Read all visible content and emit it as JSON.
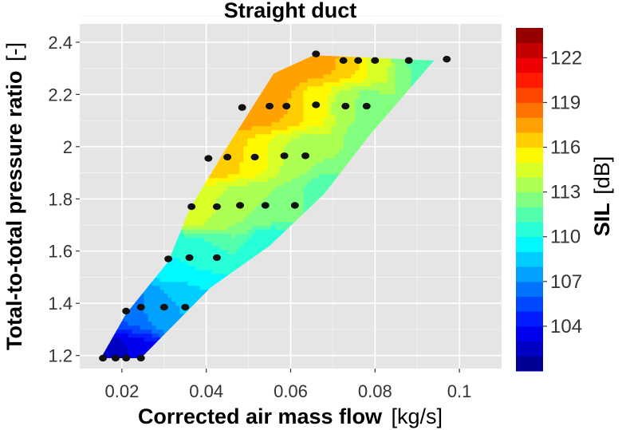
{
  "chart_data": {
    "type": "contour-scatter",
    "title": "Straight duct",
    "xlabel": {
      "main": "Corrected air mass flow",
      "unit": "[kg/s]"
    },
    "ylabel": {
      "main": "Total-to-total pressure ratio",
      "unit": "[-]"
    },
    "xlim": [
      0.01,
      0.11
    ],
    "ylim": [
      1.15,
      2.47
    ],
    "xticks": [
      0.02,
      0.04,
      0.06,
      0.08,
      0.1
    ],
    "xtick_labels": [
      "0.02",
      "0.04",
      "0.06",
      "0.08",
      "0.1"
    ],
    "yticks": [
      1.2,
      1.4,
      1.6,
      1.8,
      2.0,
      2.2,
      2.4
    ],
    "ytick_labels": [
      "1.2",
      "1.4",
      "1.6",
      "1.8",
      "2",
      "2.2",
      "2.4"
    ],
    "grid": true,
    "colorbar": {
      "label": {
        "main": "SIL",
        "unit": "[dB]"
      },
      "range": [
        101,
        124
      ],
      "ticks": [
        104,
        107,
        110,
        113,
        116,
        119,
        122
      ],
      "tick_labels": [
        "104",
        "107",
        "110",
        "113",
        "116",
        "119",
        "122"
      ]
    },
    "domain_boundary": [
      [
        0.015,
        1.19
      ],
      [
        0.0245,
        1.19
      ],
      [
        0.041,
        1.46
      ],
      [
        0.055,
        1.62
      ],
      [
        0.068,
        1.82
      ],
      [
        0.079,
        2.05
      ],
      [
        0.094,
        2.33
      ],
      [
        0.0655,
        2.35
      ],
      [
        0.056,
        2.28
      ],
      [
        0.045,
        2.0
      ],
      [
        0.036,
        1.76
      ],
      [
        0.031,
        1.56
      ],
      [
        0.021,
        1.36
      ]
    ],
    "sil_contour_points": [
      {
        "x": 0.0155,
        "y": 1.19,
        "sil": 102
      },
      {
        "x": 0.0185,
        "y": 1.19,
        "sil": 102.5
      },
      {
        "x": 0.021,
        "y": 1.19,
        "sil": 103
      },
      {
        "x": 0.0245,
        "y": 1.19,
        "sil": 103.5
      },
      {
        "x": 0.021,
        "y": 1.37,
        "sil": 106
      },
      {
        "x": 0.0245,
        "y": 1.385,
        "sil": 107
      },
      {
        "x": 0.03,
        "y": 1.385,
        "sil": 108
      },
      {
        "x": 0.035,
        "y": 1.385,
        "sil": 108
      },
      {
        "x": 0.031,
        "y": 1.57,
        "sil": 110
      },
      {
        "x": 0.036,
        "y": 1.575,
        "sil": 110
      },
      {
        "x": 0.0425,
        "y": 1.575,
        "sil": 111
      },
      {
        "x": 0.0365,
        "y": 1.77,
        "sil": 115
      },
      {
        "x": 0.0425,
        "y": 1.77,
        "sil": 114
      },
      {
        "x": 0.048,
        "y": 1.775,
        "sil": 113
      },
      {
        "x": 0.054,
        "y": 1.775,
        "sil": 113
      },
      {
        "x": 0.061,
        "y": 1.775,
        "sil": 112
      },
      {
        "x": 0.0405,
        "y": 1.955,
        "sil": 117
      },
      {
        "x": 0.045,
        "y": 1.96,
        "sil": 116.5
      },
      {
        "x": 0.0515,
        "y": 1.96,
        "sil": 115.5
      },
      {
        "x": 0.0585,
        "y": 1.965,
        "sil": 114
      },
      {
        "x": 0.0635,
        "y": 1.965,
        "sil": 113
      },
      {
        "x": 0.0485,
        "y": 2.15,
        "sil": 118
      },
      {
        "x": 0.055,
        "y": 2.155,
        "sil": 117.5
      },
      {
        "x": 0.059,
        "y": 2.155,
        "sil": 117
      },
      {
        "x": 0.066,
        "y": 2.16,
        "sil": 115.5
      },
      {
        "x": 0.073,
        "y": 2.155,
        "sil": 113.5
      },
      {
        "x": 0.078,
        "y": 2.155,
        "sil": 112.5
      },
      {
        "x": 0.066,
        "y": 2.355,
        "sil": 118
      },
      {
        "x": 0.0725,
        "y": 2.33,
        "sil": 117
      },
      {
        "x": 0.076,
        "y": 2.33,
        "sil": 116
      },
      {
        "x": 0.08,
        "y": 2.33,
        "sil": 114.5
      },
      {
        "x": 0.088,
        "y": 2.33,
        "sil": 112
      },
      {
        "x": 0.097,
        "y": 2.335,
        "sil": 110.5
      },
      {
        "x": 0.094,
        "y": 2.33,
        "sil": 111
      },
      {
        "x": 0.0655,
        "y": 2.35,
        "sil": 118
      },
      {
        "x": 0.041,
        "y": 1.46,
        "sil": 109
      },
      {
        "x": 0.055,
        "y": 1.62,
        "sil": 110
      },
      {
        "x": 0.068,
        "y": 1.82,
        "sil": 111.5
      },
      {
        "x": 0.079,
        "y": 2.05,
        "sil": 112
      },
      {
        "x": 0.045,
        "y": 2.0,
        "sil": 117
      },
      {
        "x": 0.056,
        "y": 2.28,
        "sil": 118
      }
    ],
    "measurement_points": [
      {
        "x": 0.0155,
        "y": 1.19
      },
      {
        "x": 0.0185,
        "y": 1.19
      },
      {
        "x": 0.021,
        "y": 1.19
      },
      {
        "x": 0.0245,
        "y": 1.19
      },
      {
        "x": 0.021,
        "y": 1.37
      },
      {
        "x": 0.0245,
        "y": 1.385
      },
      {
        "x": 0.03,
        "y": 1.385
      },
      {
        "x": 0.035,
        "y": 1.385
      },
      {
        "x": 0.031,
        "y": 1.57
      },
      {
        "x": 0.036,
        "y": 1.575
      },
      {
        "x": 0.0425,
        "y": 1.575
      },
      {
        "x": 0.0365,
        "y": 1.77
      },
      {
        "x": 0.0425,
        "y": 1.77
      },
      {
        "x": 0.048,
        "y": 1.775
      },
      {
        "x": 0.054,
        "y": 1.775
      },
      {
        "x": 0.061,
        "y": 1.775
      },
      {
        "x": 0.0405,
        "y": 1.955
      },
      {
        "x": 0.045,
        "y": 1.96
      },
      {
        "x": 0.0515,
        "y": 1.96
      },
      {
        "x": 0.0585,
        "y": 1.965
      },
      {
        "x": 0.0635,
        "y": 1.965
      },
      {
        "x": 0.0485,
        "y": 2.15
      },
      {
        "x": 0.055,
        "y": 2.155
      },
      {
        "x": 0.059,
        "y": 2.155
      },
      {
        "x": 0.066,
        "y": 2.16
      },
      {
        "x": 0.073,
        "y": 2.155
      },
      {
        "x": 0.078,
        "y": 2.155
      },
      {
        "x": 0.066,
        "y": 2.355
      },
      {
        "x": 0.0725,
        "y": 2.33
      },
      {
        "x": 0.076,
        "y": 2.33
      },
      {
        "x": 0.08,
        "y": 2.33
      },
      {
        "x": 0.088,
        "y": 2.33
      },
      {
        "x": 0.097,
        "y": 2.335
      }
    ]
  }
}
